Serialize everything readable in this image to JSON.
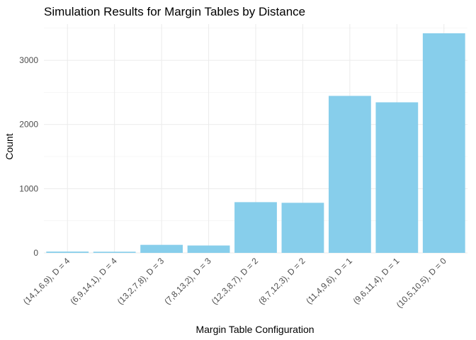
{
  "chart_data": {
    "type": "bar",
    "title": "Simulation Results for Margin Tables by Distance",
    "xlabel": "Margin Table Configuration",
    "ylabel": "Count",
    "categories": [
      "(14,1,6,9), D = 4",
      "(6,9,14,1), D = 4",
      "(13,2,7,8), D = 3",
      "(7,8,13,2), D = 3",
      "(12,3,8,7), D = 2",
      "(8,7,12,3), D = 2",
      "(11,4,9,6), D = 1",
      "(9,6,11,4), D = 1",
      "(10,5,10,5), D = 0"
    ],
    "values": [
      20,
      18,
      125,
      115,
      790,
      780,
      2445,
      2345,
      3420
    ],
    "ylim": [
      0,
      3420
    ],
    "yticks": [
      0,
      1000,
      2000,
      3000
    ],
    "grid": true,
    "legend": "none",
    "bar_color": "#87ceeb"
  }
}
